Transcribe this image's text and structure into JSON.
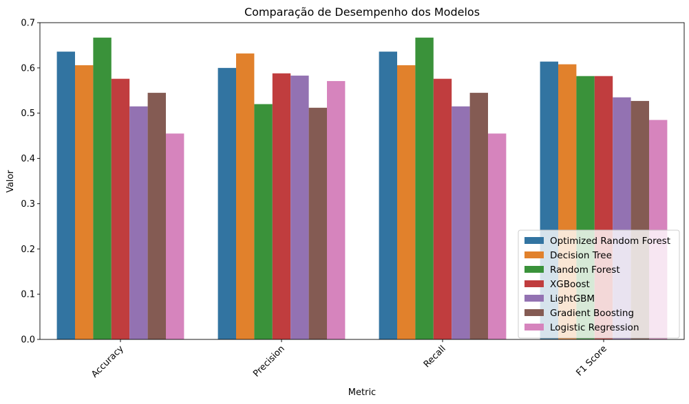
{
  "chart_data": {
    "type": "bar",
    "title": "Comparação de Desempenho dos Modelos",
    "xlabel": "Metric",
    "ylabel": "Valor",
    "ylim": [
      0,
      0.7
    ],
    "yticks": [
      "0.0",
      "0.1",
      "0.2",
      "0.3",
      "0.4",
      "0.5",
      "0.6",
      "0.7"
    ],
    "categories": [
      "Accuracy",
      "Precision",
      "Recall",
      "F1 Score"
    ],
    "legend_position": "lower-right",
    "grid": false,
    "series": [
      {
        "name": "Optimized Random Forest",
        "color": "#3274a1",
        "values": [
          0.636,
          0.6,
          0.636,
          0.614
        ]
      },
      {
        "name": "Decision Tree",
        "color": "#e1812c",
        "values": [
          0.606,
          0.632,
          0.606,
          0.608
        ]
      },
      {
        "name": "Random Forest",
        "color": "#3a923a",
        "values": [
          0.667,
          0.52,
          0.667,
          0.582
        ]
      },
      {
        "name": "XGBoost",
        "color": "#c03d3e",
        "values": [
          0.576,
          0.588,
          0.576,
          0.582
        ]
      },
      {
        "name": "LightGBM",
        "color": "#9372b2",
        "values": [
          0.515,
          0.583,
          0.515,
          0.535
        ]
      },
      {
        "name": "Gradient Boosting",
        "color": "#845b53",
        "values": [
          0.545,
          0.512,
          0.545,
          0.527
        ]
      },
      {
        "name": "Logistic Regression",
        "color": "#d684bd",
        "values": [
          0.455,
          0.571,
          0.455,
          0.485
        ]
      }
    ]
  }
}
